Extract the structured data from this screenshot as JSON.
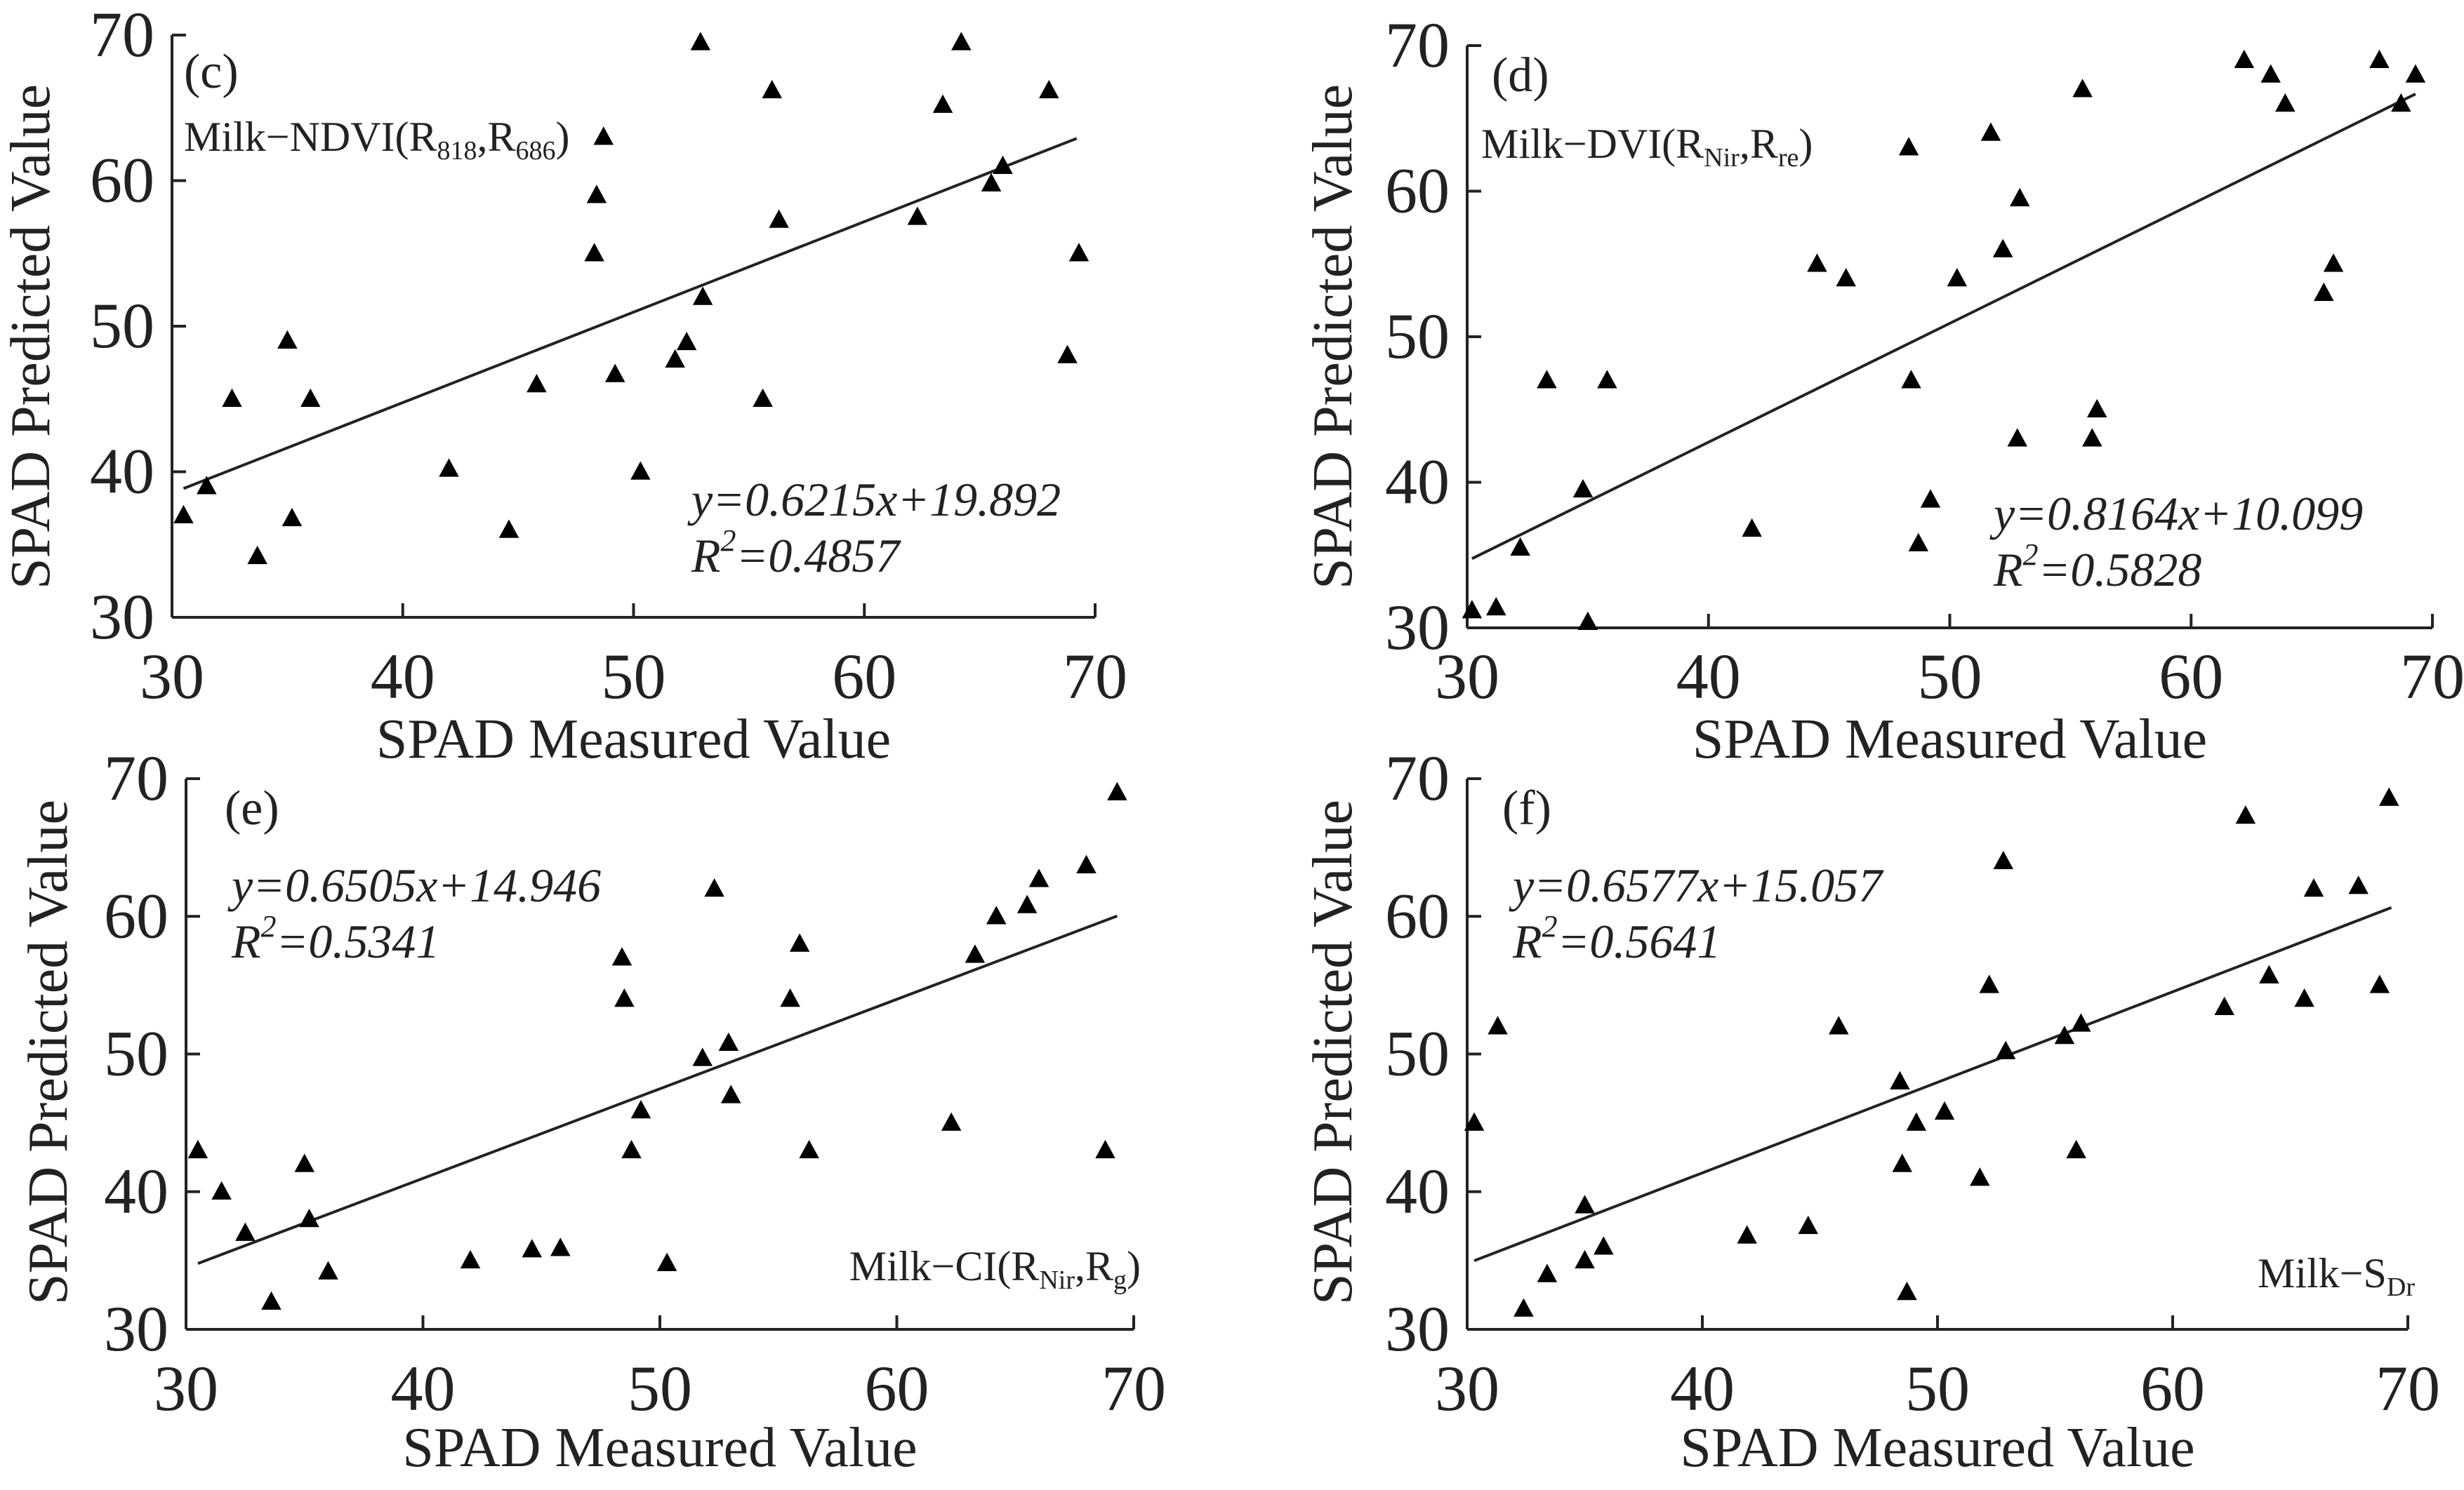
{
  "figure": {
    "xlabel": "SPAD Measured Value",
    "ylabel": "SPAD Predicted Value"
  },
  "chart_data": [
    {
      "panel": "(c)",
      "type": "scatter",
      "model_label": "Milk−NDVI(R",
      "model_subs": [
        "818",
        "686"
      ],
      "equation": "y=0.6215x+19.892",
      "r2_prefix": "R",
      "r2_value": "=0.4857",
      "xlabel": "SPAD Measured Value",
      "ylabel": "SPAD Predicted Value",
      "xlim": [
        30,
        70
      ],
      "ylim": [
        30,
        70
      ],
      "xticks": [
        30,
        40,
        50,
        60,
        70
      ],
      "yticks": [
        30,
        40,
        50,
        60,
        70
      ],
      "fit": {
        "slope": 0.6215,
        "intercept": 19.892,
        "x_range": [
          30.5,
          69.2
        ]
      },
      "points": [
        [
          30.5,
          37
        ],
        [
          31.5,
          39
        ],
        [
          32.6,
          45
        ],
        [
          33.7,
          34.2
        ],
        [
          35,
          49
        ],
        [
          35.2,
          36.8
        ],
        [
          36,
          45
        ],
        [
          42,
          40.2
        ],
        [
          44.6,
          36
        ],
        [
          45.8,
          46
        ],
        [
          48.3,
          55
        ],
        [
          48.4,
          59
        ],
        [
          48.7,
          63
        ],
        [
          49.2,
          46.7
        ],
        [
          50.3,
          40
        ],
        [
          51.8,
          47.7
        ],
        [
          52.3,
          48.9
        ],
        [
          52.9,
          69.5
        ],
        [
          53,
          52
        ],
        [
          55.6,
          45
        ],
        [
          56,
          66.2
        ],
        [
          56.3,
          57.3
        ],
        [
          62.3,
          57.5
        ],
        [
          63.4,
          65.2
        ],
        [
          64.2,
          69.5
        ],
        [
          65.5,
          59.8
        ],
        [
          66,
          61
        ],
        [
          68,
          66.2
        ],
        [
          68.8,
          48
        ],
        [
          69.3,
          55
        ]
      ]
    },
    {
      "panel": "(d)",
      "type": "scatter",
      "model_label": "Milk−DVI(R",
      "model_subs": [
        "Nir",
        "re"
      ],
      "equation": "y=0.8164x+10.099",
      "r2_prefix": "R",
      "r2_value": "=0.5828",
      "xlabel": "SPAD Measured Value",
      "ylabel": "SPAD Predicted Value",
      "xlim": [
        30,
        70
      ],
      "ylim": [
        30,
        70
      ],
      "xticks": [
        30,
        40,
        50,
        60,
        70
      ],
      "yticks": [
        30,
        40,
        50,
        60,
        70
      ],
      "fit": {
        "slope": 0.8164,
        "intercept": 10.099,
        "x_range": [
          30.2,
          69.3
        ]
      },
      "points": [
        [
          30.2,
          31.2
        ],
        [
          31.2,
          31.4
        ],
        [
          32.2,
          35.5
        ],
        [
          33.3,
          47
        ],
        [
          34.8,
          39.5
        ],
        [
          35,
          30.4
        ],
        [
          35.8,
          47
        ],
        [
          41.8,
          36.8
        ],
        [
          44.5,
          55
        ],
        [
          45.7,
          54
        ],
        [
          48.3,
          63
        ],
        [
          48.4,
          47
        ],
        [
          48.7,
          35.8
        ],
        [
          49.2,
          38.8
        ],
        [
          50.3,
          54
        ],
        [
          51.7,
          64
        ],
        [
          52.2,
          56
        ],
        [
          52.8,
          43
        ],
        [
          52.9,
          59.5
        ],
        [
          55.5,
          67
        ],
        [
          55.9,
          43
        ],
        [
          56.1,
          45
        ],
        [
          62.2,
          69
        ],
        [
          63.3,
          68
        ],
        [
          63.9,
          66
        ],
        [
          65.5,
          53
        ],
        [
          65.9,
          55
        ],
        [
          67.8,
          69
        ],
        [
          68.7,
          66
        ],
        [
          69.3,
          68
        ]
      ]
    },
    {
      "panel": "(e)",
      "type": "scatter",
      "model_label": "Milk−CI(R",
      "model_subs": [
        "Nir",
        "g"
      ],
      "equation": "y=0.6505x+14.946",
      "r2_prefix": "R",
      "r2_value": "=0.5341",
      "xlabel": "SPAD Measured Value",
      "ylabel": "SPAD Predicted Value",
      "xlim": [
        30,
        70
      ],
      "ylim": [
        30,
        70
      ],
      "xticks": [
        30,
        40,
        50,
        60,
        70
      ],
      "yticks": [
        30,
        40,
        50,
        60,
        70
      ],
      "fit": {
        "slope": 0.6505,
        "intercept": 14.946,
        "x_range": [
          30.5,
          69.3
        ]
      },
      "points": [
        [
          30.5,
          43
        ],
        [
          31.5,
          40
        ],
        [
          32.5,
          37
        ],
        [
          33.6,
          32
        ],
        [
          35,
          42
        ],
        [
          35.2,
          38
        ],
        [
          36,
          34.2
        ],
        [
          42,
          35
        ],
        [
          44.6,
          35.8
        ],
        [
          45.8,
          35.9
        ],
        [
          48.4,
          57
        ],
        [
          48.5,
          54
        ],
        [
          48.8,
          43
        ],
        [
          49.2,
          45.9
        ],
        [
          50.3,
          34.8
        ],
        [
          51.8,
          49.7
        ],
        [
          52.3,
          62
        ],
        [
          52.9,
          50.8
        ],
        [
          53,
          47
        ],
        [
          55.5,
          54
        ],
        [
          55.9,
          58
        ],
        [
          56.3,
          43
        ],
        [
          62.3,
          45
        ],
        [
          63.3,
          57.2
        ],
        [
          64.2,
          60
        ],
        [
          65.5,
          60.8
        ],
        [
          66,
          62.7
        ],
        [
          68,
          63.7
        ],
        [
          68.8,
          43
        ],
        [
          69.3,
          69
        ]
      ]
    },
    {
      "panel": "(f)",
      "type": "scatter",
      "model_label": "Milk−S",
      "model_subs": [
        "Dr"
      ],
      "equation": "y=0.6577x+15.057",
      "r2_prefix": "R",
      "r2_value": "=0.5641",
      "xlabel": "SPAD Measured Value",
      "ylabel": "SPAD Predicted Value",
      "xlim": [
        30,
        70
      ],
      "ylim": [
        30,
        70
      ],
      "xticks": [
        30,
        40,
        50,
        60,
        70
      ],
      "yticks": [
        30,
        40,
        50,
        60,
        70
      ],
      "fit": {
        "slope": 0.6577,
        "intercept": 15.057,
        "x_range": [
          30.3,
          69.3
        ]
      },
      "points": [
        [
          30.3,
          45
        ],
        [
          31.3,
          52
        ],
        [
          32.4,
          31.5
        ],
        [
          33.4,
          34
        ],
        [
          35,
          39
        ],
        [
          35,
          35
        ],
        [
          35.8,
          36
        ],
        [
          41.9,
          36.8
        ],
        [
          44.5,
          37.5
        ],
        [
          45.8,
          52
        ],
        [
          48.4,
          48
        ],
        [
          48.5,
          42
        ],
        [
          48.7,
          32.7
        ],
        [
          49.1,
          45
        ],
        [
          50.3,
          45.8
        ],
        [
          51.8,
          41
        ],
        [
          52.2,
          55
        ],
        [
          52.8,
          64
        ],
        [
          52.9,
          50.2
        ],
        [
          55.4,
          51.3
        ],
        [
          55.9,
          43
        ],
        [
          56.1,
          52.2
        ],
        [
          62.2,
          53.4
        ],
        [
          63.1,
          67.3
        ],
        [
          64.1,
          55.7
        ],
        [
          65.6,
          54
        ],
        [
          66,
          62
        ],
        [
          67.9,
          62.2
        ],
        [
          68.8,
          55
        ],
        [
          69.2,
          68.6
        ]
      ]
    }
  ]
}
